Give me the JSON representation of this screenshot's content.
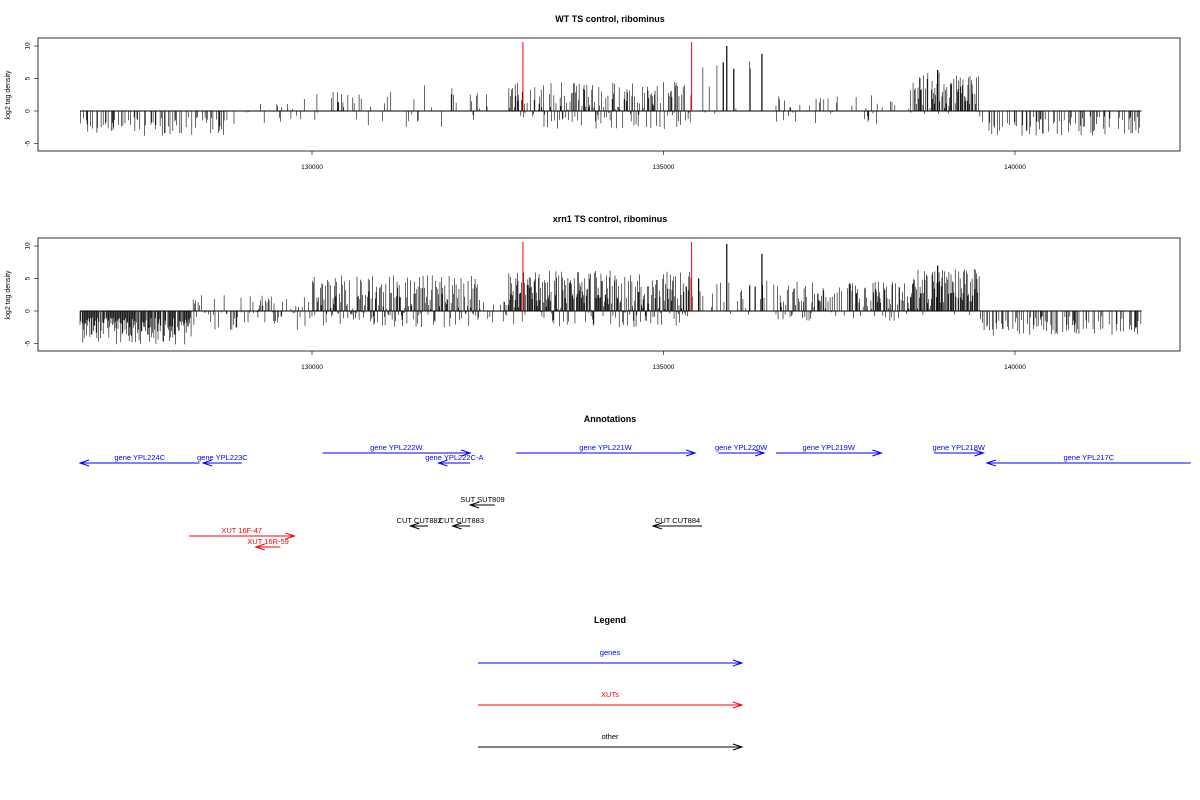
{
  "colors": {
    "gene": "#0000ff",
    "xut": "#ff0000",
    "other": "#000000",
    "marker": "#ff0000"
  },
  "chart_data": [
    {
      "type": "bar",
      "title": "WT TS control, ribominus",
      "ylabel": "log2 tag density",
      "xlim": [
        126200,
        142500
      ],
      "ylim": [
        -6,
        11
      ],
      "x_ticks": [
        130000,
        135000,
        140000
      ],
      "x_tick_labels": [
        "130000",
        "135000",
        "140000"
      ],
      "y_ticks": [
        -5,
        0,
        5,
        10
      ],
      "y_tick_labels": [
        "-5",
        "0",
        "5",
        "10"
      ],
      "markers": [
        133000,
        135400
      ],
      "segments": [
        {
          "from": 126700,
          "to": 128800,
          "min": -3.8,
          "max": -0.8,
          "density": 0.35
        },
        {
          "from": 128800,
          "to": 129500,
          "min": -2.0,
          "max": 1.5,
          "density": 0.08
        },
        {
          "from": 129500,
          "to": 131500,
          "min": -2.5,
          "max": 3.0,
          "density": 0.2
        },
        {
          "from": 131500,
          "to": 132500,
          "min": -2.5,
          "max": 4.2,
          "density": 0.16
        },
        {
          "from": 132800,
          "to": 133300,
          "min": -1.5,
          "max": 4.5,
          "density": 0.6
        },
        {
          "from": 133300,
          "to": 135400,
          "min": -2.8,
          "max": 4.5,
          "density": 0.7
        },
        {
          "from": 135400,
          "to": 136600,
          "min": -1.0,
          "max": 9.5,
          "density": 0.12
        },
        {
          "from": 136600,
          "to": 138500,
          "min": -2.0,
          "max": 2.5,
          "density": 0.15
        },
        {
          "from": 138500,
          "to": 139500,
          "min": -0.5,
          "max": 6.0,
          "density": 0.7
        },
        {
          "from": 139500,
          "to": 141800,
          "min": -3.8,
          "max": -0.8,
          "density": 0.35
        }
      ],
      "peaks": [
        [
          135900,
          10
        ],
        [
          135850,
          7.5
        ],
        [
          136400,
          8.8
        ],
        [
          136000,
          6.5
        ],
        [
          138900,
          6.3
        ]
      ]
    },
    {
      "type": "bar",
      "title": "xrn1 TS control, ribominus",
      "ylabel": "log2 tag density",
      "xlim": [
        126200,
        142500
      ],
      "ylim": [
        -6,
        11
      ],
      "x_ticks": [
        130000,
        135000,
        140000
      ],
      "x_tick_labels": [
        "130000",
        "135000",
        "140000"
      ],
      "y_ticks": [
        -5,
        0,
        5,
        10
      ],
      "y_tick_labels": [
        "-5",
        "0",
        "5",
        "10"
      ],
      "markers": [
        133000,
        135400
      ],
      "segments": [
        {
          "from": 126700,
          "to": 128300,
          "min": -5.2,
          "max": -1.0,
          "density": 0.9
        },
        {
          "from": 128300,
          "to": 130000,
          "min": -3.0,
          "max": 2.5,
          "density": 0.5
        },
        {
          "from": 130000,
          "to": 132400,
          "min": -2.5,
          "max": 5.5,
          "density": 0.9
        },
        {
          "from": 132400,
          "to": 132800,
          "min": -2.0,
          "max": 1.5,
          "density": 0.3
        },
        {
          "from": 132800,
          "to": 135400,
          "min": -2.5,
          "max": 6.2,
          "density": 1.0
        },
        {
          "from": 135400,
          "to": 136600,
          "min": -1.0,
          "max": 5.0,
          "density": 0.25
        },
        {
          "from": 136600,
          "to": 138500,
          "min": -1.5,
          "max": 4.5,
          "density": 0.6
        },
        {
          "from": 138500,
          "to": 139500,
          "min": -1.0,
          "max": 6.5,
          "density": 0.9
        },
        {
          "from": 139500,
          "to": 141800,
          "min": -3.8,
          "max": -0.8,
          "density": 0.35
        }
      ],
      "peaks": [
        [
          135900,
          10.3
        ],
        [
          136400,
          8.8
        ],
        [
          135500,
          5.0
        ],
        [
          138900,
          7.0
        ]
      ]
    }
  ],
  "annotations": {
    "title": "Annotations",
    "features": [
      {
        "label": "gene YPL224C",
        "kind": "gene",
        "start": 126700,
        "end": 128400,
        "strand": "-",
        "row": 0
      },
      {
        "label": "gene YPL223C",
        "kind": "gene",
        "start": 128450,
        "end": 129000,
        "strand": "-",
        "row": 0
      },
      {
        "label": "gene YPL222W",
        "kind": "gene",
        "start": 130150,
        "end": 132250,
        "strand": "+",
        "row": 1
      },
      {
        "label": "gene YPL222C-A",
        "kind": "gene",
        "start": 131800,
        "end": 132250,
        "strand": "-",
        "row": 0
      },
      {
        "label": "gene YPL221W",
        "kind": "gene",
        "start": 132900,
        "end": 135450,
        "strand": "+",
        "row": 1
      },
      {
        "label": "gene YPL220W",
        "kind": "gene",
        "start": 135780,
        "end": 136430,
        "strand": "+",
        "row": 1
      },
      {
        "label": "gene YPL219W",
        "kind": "gene",
        "start": 136600,
        "end": 138100,
        "strand": "+",
        "row": 1
      },
      {
        "label": "gene YPL218W",
        "kind": "gene",
        "start": 138850,
        "end": 139550,
        "strand": "+",
        "row": 1
      },
      {
        "label": "gene YPL217C",
        "kind": "gene",
        "start": 139600,
        "end": 142500,
        "strand": "-",
        "row": 0
      },
      {
        "label": "SUT SUT809",
        "kind": "other",
        "start": 132250,
        "end": 132600,
        "strand": "-",
        "row": 2
      },
      {
        "label": "CUT CUT882",
        "kind": "other",
        "start": 131400,
        "end": 131650,
        "strand": "-",
        "row": 3
      },
      {
        "label": "CUT CUT883",
        "kind": "other",
        "start": 132000,
        "end": 132250,
        "strand": "-",
        "row": 3
      },
      {
        "label": "CUT CUT884",
        "kind": "other",
        "start": 134850,
        "end": 135550,
        "strand": "-",
        "row": 3
      },
      {
        "label": "XUT 16F-47",
        "kind": "xut",
        "start": 128250,
        "end": 129750,
        "strand": "+",
        "row": 4
      },
      {
        "label": "XUT 16R-59",
        "kind": "xut",
        "start": 129200,
        "end": 129550,
        "strand": "-",
        "row": 5
      }
    ]
  },
  "legend": {
    "title": "Legend",
    "items": [
      {
        "label": "genes",
        "kind": "gene"
      },
      {
        "label": "XUTs",
        "kind": "xut"
      },
      {
        "label": "other",
        "kind": "other"
      }
    ]
  }
}
